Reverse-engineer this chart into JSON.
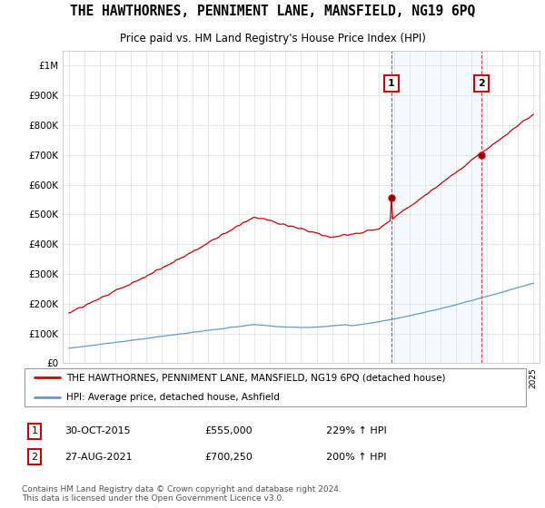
{
  "title": "THE HAWTHORNES, PENNIMENT LANE, MANSFIELD, NG19 6PQ",
  "subtitle": "Price paid vs. HM Land Registry's House Price Index (HPI)",
  "footer": "Contains HM Land Registry data © Crown copyright and database right 2024.\nThis data is licensed under the Open Government Licence v3.0.",
  "legend_line1": "THE HAWTHORNES, PENNIMENT LANE, MANSFIELD, NG19 6PQ (detached house)",
  "legend_line2": "HPI: Average price, detached house, Ashfield",
  "sale1_year": 2015.83,
  "sale1_value": 555000,
  "sale1_text": "30-OCT-2015",
  "sale1_price": "£555,000",
  "sale1_pct": "229% ↑ HPI",
  "sale2_year": 2021.65,
  "sale2_value": 700250,
  "sale2_text": "27-AUG-2021",
  "sale2_price": "£700,250",
  "sale2_pct": "200% ↑ HPI",
  "red_color": "#cc0000",
  "blue_color": "#6699cc",
  "vline_color": "#dd4444",
  "shade_color": "#ddeeff",
  "background_color": "#ffffff",
  "grid_color": "#dddddd",
  "ylim": [
    0,
    1050000
  ],
  "yticks": [
    0,
    100000,
    200000,
    300000,
    400000,
    500000,
    600000,
    700000,
    800000,
    900000,
    1000000
  ],
  "year_start": 1995,
  "year_end": 2025
}
